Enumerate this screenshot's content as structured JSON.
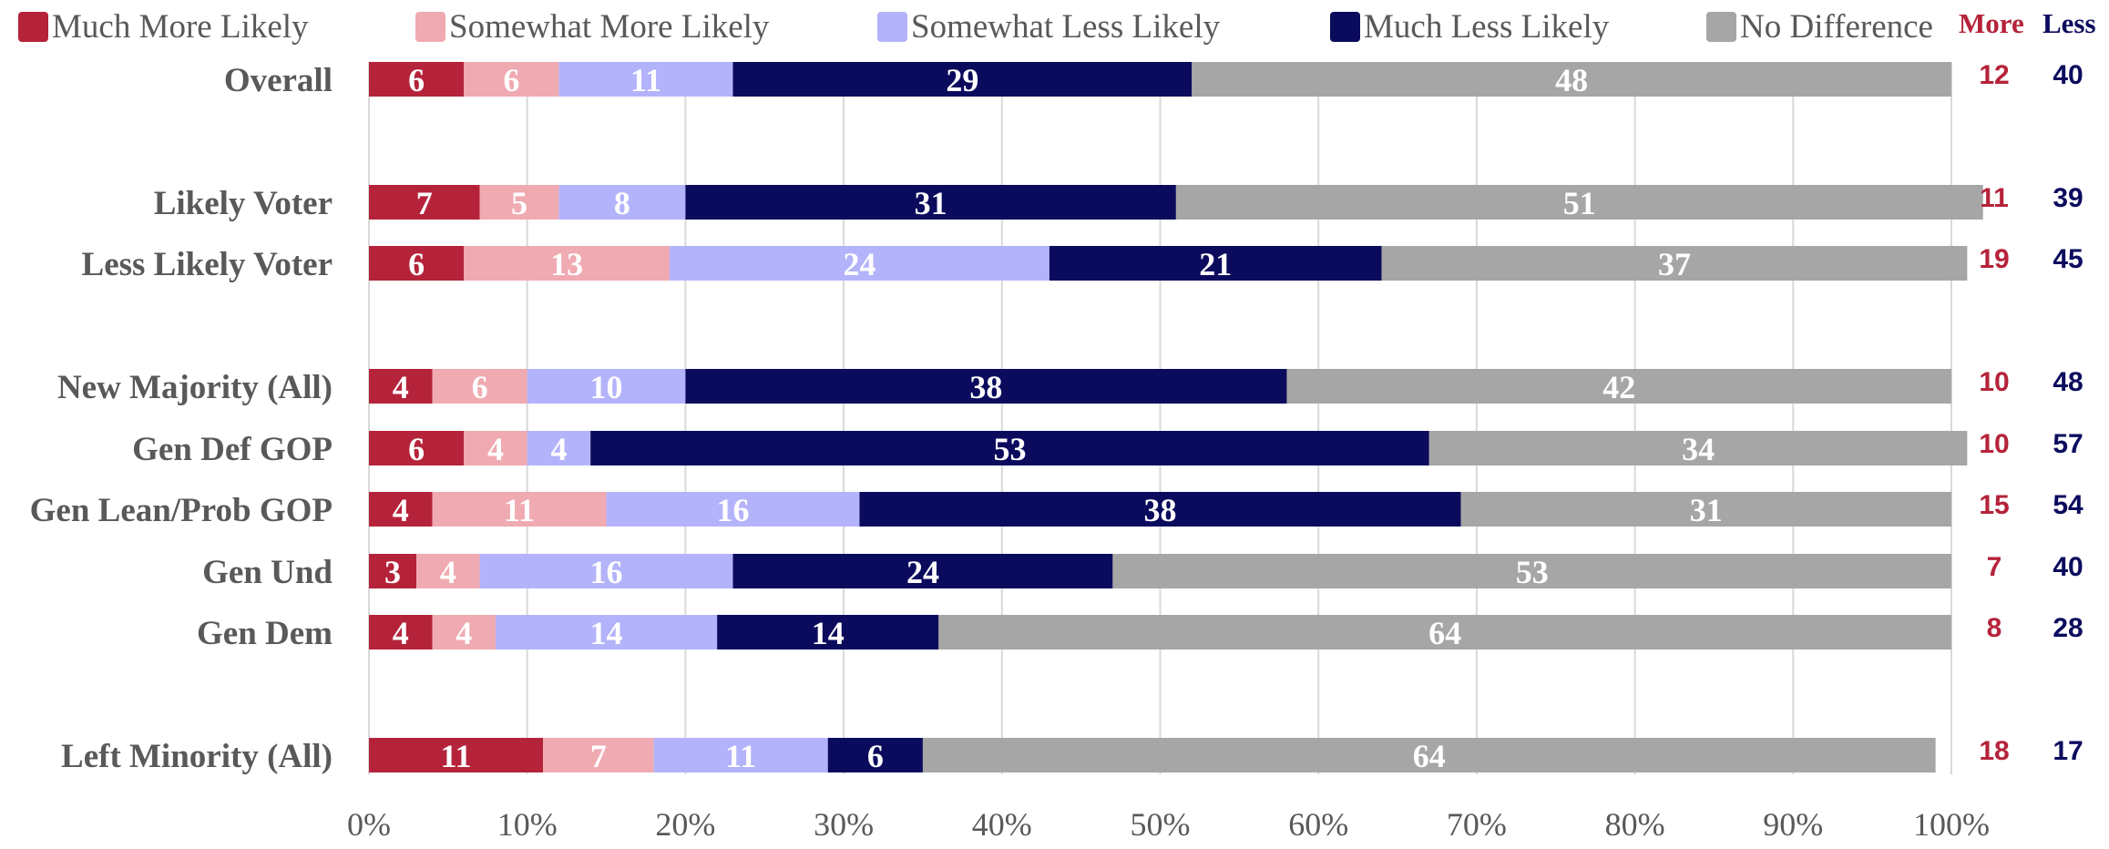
{
  "chart_data": {
    "type": "bar",
    "orientation": "horizontal",
    "stacked": true,
    "title": "",
    "xlabel": "",
    "ylabel": "",
    "xlim": [
      0,
      100
    ],
    "x_ticks": [
      "0%",
      "10%",
      "20%",
      "30%",
      "40%",
      "50%",
      "60%",
      "70%",
      "80%",
      "90%",
      "100%"
    ],
    "grid": "vertical",
    "legend_position": "top",
    "categories": [
      "Overall",
      "Likely Voter",
      "Less Likely Voter",
      "New Majority (All)",
      "Gen Def GOP",
      "Gen Lean/Prob GOP",
      "Gen Und",
      "Gen Dem",
      "Left Minority (All)"
    ],
    "groups": [
      [
        "Overall"
      ],
      [
        "Likely Voter",
        "Less Likely Voter"
      ],
      [
        "New Majority (All)",
        "Gen Def GOP",
        "Gen Lean/Prob GOP",
        "Gen Und",
        "Gen Dem"
      ],
      [
        "Left Minority (All)"
      ]
    ],
    "series": [
      {
        "name": "Much More Likely",
        "color": "#b5233a",
        "label_color": "#ffffff",
        "values": [
          6,
          7,
          6,
          4,
          6,
          4,
          3,
          4,
          11
        ]
      },
      {
        "name": "Somewhat More Likely",
        "color": "#f0aab1",
        "label_color": "#ffffff",
        "values": [
          6,
          5,
          13,
          6,
          4,
          11,
          4,
          4,
          7
        ]
      },
      {
        "name": "Somewhat Less Likely",
        "color": "#b3b3fb",
        "label_color": "#ffffff",
        "values": [
          11,
          8,
          24,
          10,
          4,
          16,
          16,
          14,
          11
        ]
      },
      {
        "name": "Much Less Likely",
        "color": "#0b0b5e",
        "label_color": "#ffffff",
        "values": [
          29,
          31,
          21,
          38,
          53,
          38,
          24,
          14,
          6
        ]
      },
      {
        "name": "No Difference",
        "color": "#a6a6a6",
        "label_color": "#ffffff",
        "values": [
          48,
          51,
          37,
          42,
          34,
          31,
          53,
          64,
          64
        ]
      }
    ],
    "net_columns": [
      {
        "header": "More",
        "color": "#b5233a",
        "values": [
          12,
          11,
          19,
          10,
          10,
          15,
          7,
          8,
          18
        ]
      },
      {
        "header": "Less",
        "color": "#0b0b5e",
        "values": [
          40,
          39,
          45,
          48,
          57,
          54,
          40,
          28,
          17
        ]
      }
    ]
  }
}
